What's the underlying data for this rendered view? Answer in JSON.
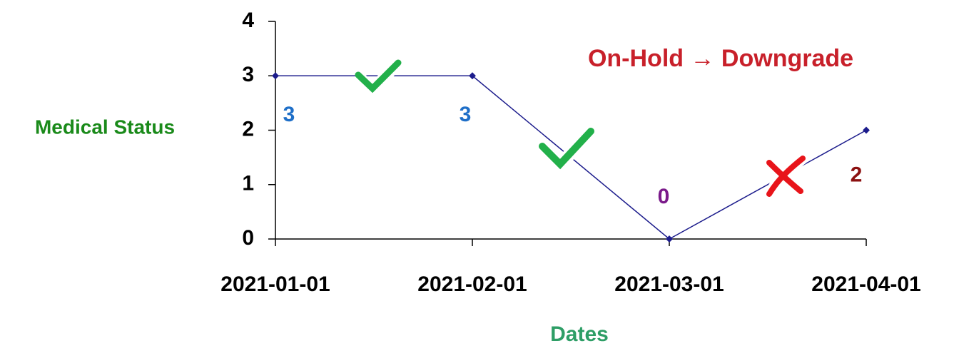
{
  "chart_data": {
    "type": "line",
    "annotation": "On-Hold → Downgrade",
    "x_label": "Dates",
    "y_label": "Medical Status",
    "categories": [
      "2021-01-01",
      "2021-02-01",
      "2021-03-01",
      "2021-04-01"
    ],
    "series": [
      {
        "name": "Medical Status",
        "color": "#1c1c8c",
        "values": [
          3,
          3,
          0,
          2
        ],
        "label_colors": [
          "#1f6fc8",
          "#1f6fc8",
          "#7a1a8a",
          "#8b1010"
        ]
      }
    ],
    "ylim": [
      0,
      4
    ],
    "yticks": [
      0,
      1,
      2,
      3,
      4
    ]
  }
}
